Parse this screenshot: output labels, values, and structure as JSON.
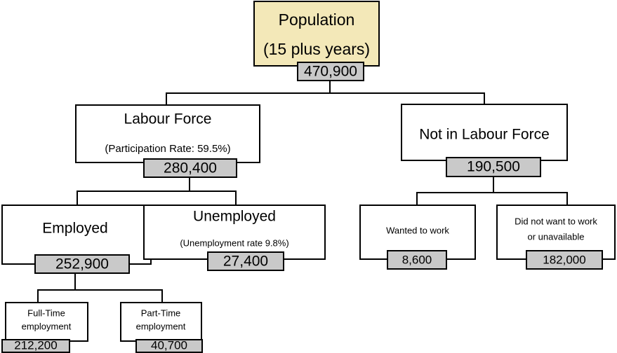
{
  "nodes": [
    {
      "lines": [
        "Population",
        "(15 plus years)"
      ],
      "value": "470,900"
    },
    {
      "lines": [
        "Labour Force",
        "(Participation Rate: 59.5%)"
      ],
      "value": "280,400"
    },
    {
      "lines": [
        "Not in Labour Force"
      ],
      "value": "190,500"
    },
    {
      "lines": [
        "Employed"
      ],
      "value": "252,900"
    },
    {
      "lines": [
        "Unemployed",
        "(Unemployment rate 9.8%)"
      ],
      "value": "27,400"
    },
    {
      "lines": [
        "Wanted to work"
      ],
      "value": "8,600"
    },
    {
      "lines": [
        "Did not want to work",
        "or unavailable"
      ],
      "value": "182,000"
    },
    {
      "lines": [
        "Full-Time",
        "employment"
      ],
      "value": "212,200"
    },
    {
      "lines": [
        "Part-Time",
        "employment"
      ],
      "value": "40,700"
    }
  ]
}
